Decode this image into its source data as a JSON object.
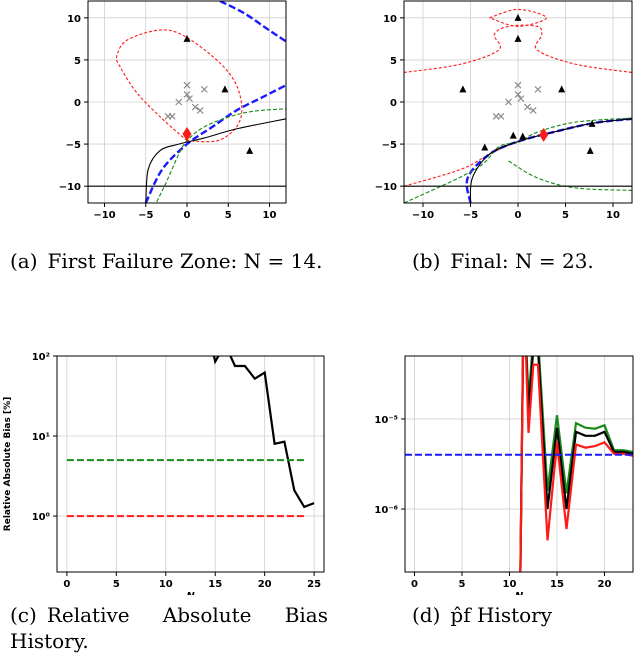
{
  "captions": {
    "a": {
      "label": "(a)",
      "text": "First Failure Zone: N = 14."
    },
    "b": {
      "label": "(b)",
      "text": "Final: N = 23."
    },
    "c": {
      "label": "(c)",
      "text": "Relative Absolute Bias History."
    },
    "d": {
      "label": "(d)",
      "text": "p̂f History"
    }
  },
  "chart_data": [
    {
      "id": "a",
      "type": "scatter",
      "xlim": [
        -12,
        12
      ],
      "ylim": [
        -12,
        12
      ],
      "grid": true,
      "x_ticks": [
        "−10",
        "−5",
        "0",
        "5",
        "10"
      ],
      "x_tick_values": [
        -10,
        -5,
        0,
        5,
        10
      ],
      "y_ticks": [
        "−10",
        "−5",
        "0",
        "5",
        "10"
      ],
      "y_tick_values": [
        -10,
        -5,
        0,
        5,
        10
      ],
      "points_x": [
        [
          0,
          2
        ],
        [
          0,
          0.9
        ],
        [
          -1,
          0
        ],
        [
          -1.8,
          -1.7
        ],
        [
          -2.3,
          -1.7
        ],
        [
          0.3,
          0.4
        ],
        [
          1,
          -0.6
        ],
        [
          1.6,
          -1
        ],
        [
          2.1,
          1.5
        ]
      ],
      "points_triangle": [
        [
          0,
          7.5
        ],
        [
          4.6,
          1.5
        ],
        [
          7.6,
          -5.8
        ]
      ],
      "points_diamond": [
        [
          0,
          -3.8
        ]
      ],
      "contours": {
        "red": [
          [
            0,
            -4.6
          ],
          [
            -3,
            -2
          ],
          [
            -6,
            1
          ],
          [
            -8,
            4
          ],
          [
            -8.5,
            5.5
          ],
          [
            -7,
            7.5
          ],
          [
            -2,
            8.5
          ],
          [
            3,
            5.5
          ],
          [
            6,
            2
          ],
          [
            6.5,
            -2
          ],
          [
            4,
            -4.5
          ],
          [
            0,
            -4.6
          ]
        ],
        "blue": [
          [
            -5,
            -12
          ],
          [
            -3,
            -8
          ],
          [
            0,
            -5
          ],
          [
            3,
            -3
          ],
          [
            6,
            -1
          ],
          [
            9,
            0.5
          ],
          [
            12,
            2
          ]
        ],
        "blue_top": [
          [
            4,
            12
          ],
          [
            7,
            10.5
          ],
          [
            10,
            8.5
          ],
          [
            12,
            7.2
          ]
        ],
        "green": [
          [
            -4,
            -12.5
          ],
          [
            -2.5,
            -9.5
          ],
          [
            -1,
            -6.2
          ],
          [
            0,
            -4.6
          ],
          [
            2,
            -3
          ],
          [
            5,
            -1.8
          ],
          [
            8,
            -1.1
          ],
          [
            12,
            -0.8
          ]
        ],
        "black": [
          [
            -5,
            -12
          ],
          [
            -4.7,
            -8
          ],
          [
            -3.3,
            -5.8
          ],
          [
            -1,
            -5
          ],
          [
            2,
            -4.3
          ],
          [
            6,
            -3.2
          ],
          [
            12,
            -2
          ]
        ],
        "black_h": [
          [
            -12,
            -10
          ],
          [
            12,
            -10
          ]
        ]
      }
    },
    {
      "id": "b",
      "type": "scatter",
      "xlim": [
        -12,
        12
      ],
      "ylim": [
        -12,
        12
      ],
      "grid": true,
      "x_ticks": [
        "−10",
        "−5",
        "0",
        "5",
        "10"
      ],
      "x_tick_values": [
        -10,
        -5,
        0,
        5,
        10
      ],
      "y_ticks": [
        "−10",
        "−5",
        "0",
        "5",
        "10"
      ],
      "y_tick_values": [
        -10,
        -5,
        0,
        5,
        10
      ],
      "points_x": [
        [
          0,
          2
        ],
        [
          0,
          0.9
        ],
        [
          -1,
          0
        ],
        [
          -1.8,
          -1.7
        ],
        [
          -2.3,
          -1.7
        ],
        [
          0.3,
          0.4
        ],
        [
          1,
          -0.6
        ],
        [
          1.6,
          -1
        ],
        [
          2.1,
          1.5
        ]
      ],
      "points_triangle": [
        [
          0,
          10
        ],
        [
          0,
          7.5
        ],
        [
          -5.8,
          1.5
        ],
        [
          4.6,
          1.5
        ],
        [
          7.6,
          -5.8
        ],
        [
          -3.5,
          -5.4
        ],
        [
          -0.5,
          -4
        ],
        [
          7.8,
          -2.6
        ],
        [
          0.5,
          -4.1
        ]
      ],
      "points_diamond": [
        [
          2.7,
          -3.9
        ]
      ],
      "contours": {
        "red_top": [
          [
            -12,
            3.5
          ],
          [
            -6,
            4.5
          ],
          [
            -2,
            6.2
          ],
          [
            -2.5,
            8
          ],
          [
            -1,
            9
          ],
          [
            2,
            9
          ],
          [
            2.5,
            8
          ],
          [
            2,
            6.2
          ],
          [
            6,
            4.5
          ],
          [
            12,
            3.5
          ]
        ],
        "red_ellipse": [
          [
            -3,
            10
          ],
          [
            0,
            11
          ],
          [
            3,
            10
          ],
          [
            0,
            9
          ],
          [
            -3,
            10
          ]
        ],
        "red_bottom": [
          [
            -12,
            -10
          ],
          [
            -6,
            -8
          ],
          [
            -3,
            -6.2
          ],
          [
            0,
            -4.7
          ],
          [
            4,
            -3.5
          ],
          [
            8,
            -2.5
          ],
          [
            12,
            -2
          ]
        ],
        "blue": [
          [
            -5,
            -12
          ],
          [
            -5.3,
            -9
          ],
          [
            -3,
            -6.2
          ],
          [
            0,
            -4.7
          ],
          [
            4,
            -3.5
          ],
          [
            8,
            -2.5
          ],
          [
            12,
            -2
          ]
        ],
        "green": [
          [
            -12,
            -12
          ],
          [
            -4.5,
            -8
          ],
          [
            -2,
            -5.3
          ],
          [
            0,
            -4.8
          ],
          [
            2,
            -3.6
          ],
          [
            6,
            -2.4
          ],
          [
            12,
            -1.9
          ]
        ],
        "green_lower": [
          [
            -1,
            -7
          ],
          [
            2,
            -9
          ],
          [
            6,
            -10.2
          ],
          [
            12,
            -10.5
          ]
        ],
        "black": [
          [
            -5,
            -12
          ],
          [
            -4.8,
            -9
          ],
          [
            -3,
            -6.2
          ],
          [
            0,
            -4.7
          ],
          [
            4,
            -3.5
          ],
          [
            8,
            -2.5
          ],
          [
            12,
            -2
          ]
        ],
        "black_h": [
          [
            -12,
            -10
          ],
          [
            12,
            -10
          ]
        ]
      }
    },
    {
      "id": "c",
      "type": "line",
      "yscale": "log",
      "xlim": [
        -1,
        26
      ],
      "ylim": [
        0.2,
        100
      ],
      "grid": true,
      "xlabel": "N",
      "ylabel": "Relative Absolute Bias [%]",
      "x_ticks": [
        "0",
        "5",
        "10",
        "15",
        "20",
        "25"
      ],
      "x_tick_values": [
        0,
        5,
        10,
        15,
        20,
        25
      ],
      "y_ticks": [
        "10⁰",
        "10¹",
        "10²"
      ],
      "y_tick_values": [
        1,
        10,
        100
      ],
      "series": [
        {
          "color": "#000000",
          "style": "solid",
          "x": [
            10,
            14,
            15,
            16,
            17,
            18,
            19,
            20,
            21,
            22,
            23,
            24,
            25
          ],
          "y": [
            100,
            300,
            85,
            140,
            75,
            75,
            52,
            62,
            8,
            8.5,
            2.1,
            1.3,
            1.45
          ]
        },
        {
          "color": "#1a8a1a",
          "style": "dashed",
          "x": [
            0,
            24
          ],
          "y": [
            5,
            5
          ]
        },
        {
          "color": "#ff1a1a",
          "style": "dashed",
          "x": [
            0,
            24
          ],
          "y": [
            1,
            1
          ]
        }
      ]
    },
    {
      "id": "d",
      "type": "line",
      "yscale": "log",
      "xlim": [
        -1,
        23
      ],
      "ylim": [
        2e-07,
        5e-05
      ],
      "grid": true,
      "xlabel": "N",
      "x_ticks": [
        "0",
        "5",
        "10",
        "15",
        "20"
      ],
      "x_tick_values": [
        0,
        5,
        10,
        15,
        20
      ],
      "y_ticks": [
        "10⁻⁶",
        "10⁻⁵"
      ],
      "y_tick_values": [
        1e-06,
        1e-05
      ],
      "series": [
        {
          "color": "#1a8a1a",
          "style": "solid",
          "x": [
            11,
            11.5,
            12,
            12.5,
            13,
            14,
            15,
            16,
            17,
            18,
            19,
            20,
            21,
            22,
            23
          ],
          "y": [
            1e-08,
            0.0003,
            1.6e-05,
            8e-05,
            8e-05,
            1.6e-06,
            1.1e-05,
            1.5e-06,
            9e-06,
            8e-06,
            7.8e-06,
            8.5e-06,
            4.5e-06,
            4.5e-06,
            4.3e-06
          ]
        },
        {
          "color": "#000000",
          "style": "solid",
          "x": [
            11,
            11.5,
            12,
            12.5,
            13,
            14,
            15,
            16,
            17,
            18,
            19,
            20,
            21,
            22,
            23
          ],
          "y": [
            1e-08,
            0.0003,
            1.2e-05,
            6e-05,
            6e-05,
            1e-06,
            8e-06,
            1e-06,
            7.2e-06,
            6.5e-06,
            6.5e-06,
            7.2e-06,
            4.3e-06,
            4.3e-06,
            4.1e-06
          ]
        },
        {
          "color": "#ff1a1a",
          "style": "solid",
          "x": [
            11,
            11.5,
            12,
            12.5,
            13,
            14,
            15,
            16,
            17,
            18,
            19,
            20,
            21,
            22,
            23
          ],
          "y": [
            1e-08,
            0.0003,
            7e-06,
            4e-05,
            4e-05,
            4.5e-07,
            5.5e-06,
            6e-07,
            5.2e-06,
            4.8e-06,
            5e-06,
            5.5e-06,
            4.1e-06,
            4.1e-06,
            3.9e-06
          ]
        },
        {
          "color": "#1a1aff",
          "style": "dashed",
          "x": [
            -1,
            23
          ],
          "y": [
            4e-06,
            4e-06
          ]
        }
      ]
    }
  ]
}
